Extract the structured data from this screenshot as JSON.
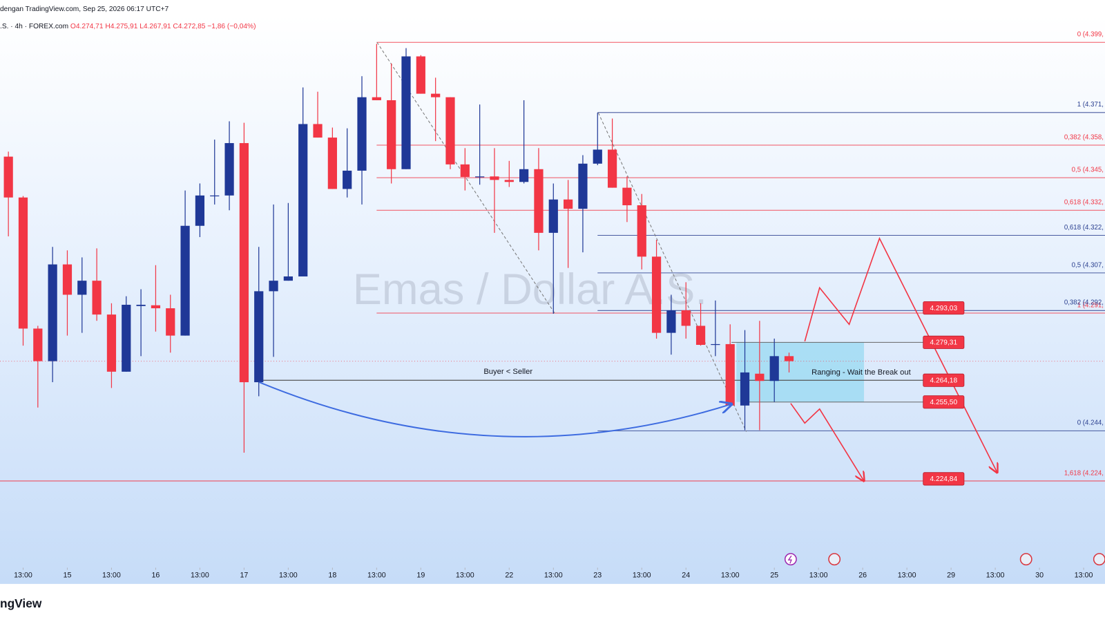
{
  "chart_data": {
    "type": "candlestick",
    "title": "Emas / Dollar A.S.",
    "header_line": "dengan TradingView.com, Sep 25, 2026 06:17 UTC+7",
    "symbol": ".S. · 4h · FOREX.com",
    "ohlc": [
      "O4.274,71",
      "H4.275,91",
      "L4.267,91",
      "C4.272,85",
      "−1,86 (−0,04%)"
    ],
    "brand": "ngView",
    "up_color": "#1f3897",
    "down_color": "#f23645",
    "x": [
      0,
      1,
      2,
      3,
      4,
      5,
      6,
      7,
      8,
      9,
      10,
      11,
      12,
      13,
      14,
      15,
      16,
      17,
      18,
      19,
      20,
      21,
      22,
      23,
      24,
      25,
      26,
      27,
      28,
      29,
      30,
      31,
      32,
      33,
      34,
      35,
      36,
      37,
      38,
      39,
      40,
      41,
      42,
      43,
      44,
      45,
      46,
      47,
      48,
      49,
      50,
      51,
      52,
      53
    ],
    "open": [
      4353.4,
      4337.1,
      4284.8,
      4271.8,
      4310.4,
      4298.3,
      4303.9,
      4290.4,
      4267.6,
      4293.8,
      4294.1,
      4292.9,
      4282.0,
      4325.8,
      4337.7,
      4337.9,
      4358.8,
      4263.4,
      4299.7,
      4303.9,
      4305.6,
      4366.4,
      4361.0,
      4340.5,
      4347.8,
      4377.1,
      4375.9,
      4348.4,
      4393.4,
      4378.5,
      4377.1,
      4350.3,
      4345.3,
      4345.5,
      4344.1,
      4343.3,
      4348.4,
      4323.0,
      4336.3,
      4332.6,
      4350.6,
      4356.2,
      4341.0,
      4334.0,
      4313.5,
      4283.1,
      4292.1,
      4285.9,
      4278.3,
      4278.6,
      4254.1,
      4266.8,
      4263.9,
      4273.8
    ],
    "high": [
      4355.4,
      4337.7,
      4285.9,
      4317.4,
      4316.0,
      4313.2,
      4316.8,
      4294.9,
      4297.7,
      4300.5,
      4310.1,
      4298.3,
      4339.9,
      4342.7,
      4360.2,
      4367.5,
      4366.9,
      4317.4,
      4334.3,
      4334.9,
      4381.0,
      4379.3,
      4365.0,
      4364.7,
      4385.5,
      4398.4,
      4390.6,
      4396.7,
      4393.9,
      4384.9,
      4377.1,
      4356.8,
      4374.2,
      4356.8,
      4351.7,
      4375.9,
      4356.8,
      4342.7,
      4344.1,
      4354.0,
      4370.9,
      4368.6,
      4345.5,
      4338.5,
      4320.2,
      4298.3,
      4303.3,
      4294.9,
      4296.0,
      4286.5,
      4284.2,
      4287.9,
      4280.8,
      4275.2
    ],
    "low": [
      4321.6,
      4278.0,
      4253.3,
      4263.4,
      4282.0,
      4283.1,
      4287.9,
      4261.1,
      4267.6,
      4273.8,
      4283.6,
      4275.2,
      4282.0,
      4321.3,
      4334.3,
      4332.0,
      4235.3,
      4257.8,
      4273.5,
      4303.9,
      4305.6,
      4361.0,
      4340.5,
      4337.1,
      4334.3,
      4375.9,
      4342.7,
      4348.4,
      4378.5,
      4359.6,
      4348.4,
      4339.9,
      4342.2,
      4323.0,
      4341.3,
      4342.7,
      4316.0,
      4290.7,
      4309.0,
      4315.2,
      4350.0,
      4341.0,
      4327.3,
      4308.4,
      4280.8,
      4274.4,
      4280.8,
      4278.0,
      4273.8,
      4253.3,
      4244.3,
      4244.3,
      4255.5,
      4267.3
    ],
    "close": [
      4337.1,
      4284.8,
      4271.8,
      4310.4,
      4298.3,
      4303.9,
      4290.4,
      4267.6,
      4294.3,
      4294.3,
      4292.9,
      4282.0,
      4325.8,
      4337.9,
      4337.9,
      4358.8,
      4263.4,
      4299.7,
      4303.9,
      4305.6,
      4366.4,
      4361.0,
      4340.5,
      4347.8,
      4377.1,
      4375.9,
      4348.4,
      4393.4,
      4378.5,
      4377.1,
      4350.3,
      4345.3,
      4345.5,
      4344.1,
      4343.3,
      4348.4,
      4323.0,
      4336.3,
      4332.6,
      4350.6,
      4356.2,
      4341.0,
      4334.0,
      4313.5,
      4283.1,
      4292.1,
      4285.9,
      4278.3,
      4278.6,
      4254.1,
      4267.3,
      4263.9,
      4273.8,
      4271.8
    ],
    "xlim": [
      -0.57,
      74.45
    ],
    "ylim": [
      4189.4,
      4409.7
    ],
    "xticks": [
      {
        "value": 1,
        "label": "13:00"
      },
      {
        "value": 4,
        "label": "15"
      },
      {
        "value": 7,
        "label": "13:00"
      },
      {
        "value": 10,
        "label": "16"
      },
      {
        "value": 13,
        "label": "13:00"
      },
      {
        "value": 16,
        "label": "17"
      },
      {
        "value": 19,
        "label": "13:00"
      },
      {
        "value": 22,
        "label": "18"
      },
      {
        "value": 25,
        "label": "13:00"
      },
      {
        "value": 28,
        "label": "19"
      },
      {
        "value": 31,
        "label": "13:00"
      },
      {
        "value": 34,
        "label": "22"
      },
      {
        "value": 37,
        "label": "13:00"
      },
      {
        "value": 40,
        "label": "23"
      },
      {
        "value": 43,
        "label": "13:00"
      },
      {
        "value": 46,
        "label": "24"
      },
      {
        "value": 49,
        "label": "13:00"
      },
      {
        "value": 52,
        "label": "25"
      },
      {
        "value": 55,
        "label": "13:00"
      },
      {
        "value": 58,
        "label": "26"
      },
      {
        "value": 61,
        "label": "13:00"
      },
      {
        "value": 64,
        "label": "29"
      },
      {
        "value": 67,
        "label": "13:00"
      },
      {
        "value": 70,
        "label": "30"
      },
      {
        "value": 73,
        "label": "13:00"
      }
    ],
    "fib_levels": [
      {
        "label": "0 (4.399,",
        "value": 4399,
        "color": "#f23645",
        "start": 25
      },
      {
        "label": "0,382 (4.358,",
        "value": 4358,
        "color": "#f23645",
        "start": 25
      },
      {
        "label": "0,5 (4.345,",
        "value": 4345,
        "color": "#f23645",
        "start": 25
      },
      {
        "label": "0,618 (4.332,",
        "value": 4332,
        "color": "#f23645",
        "start": 25
      },
      {
        "label": "1 (4.291,",
        "value": 4291,
        "color": "#f23645",
        "start": 25
      },
      {
        "label": "1,618 (4.224,",
        "value": 4224,
        "color": "#f23645"
      },
      {
        "label": "1 (4.371,",
        "value": 4371,
        "color": "#2a3f8f",
        "start": 40
      },
      {
        "label": "0,618 (4.322,",
        "value": 4322,
        "color": "#2a3f8f",
        "start": 40
      },
      {
        "label": "0,5 (4.307,",
        "value": 4307,
        "color": "#2a3f8f",
        "start": 40
      },
      {
        "label": "0,382 (4.292,",
        "value": 4292,
        "color": "#2a3f8f",
        "start": 40
      },
      {
        "label": "0 (4.244,",
        "value": 4244,
        "color": "#2a3f8f",
        "start": 40
      }
    ],
    "price_tags": [
      {
        "value": 4293.03,
        "label": "4.293,03"
      },
      {
        "value": 4279.31,
        "label": "4.279,31"
      },
      {
        "value": 4264.18,
        "label": "4.264,18"
      },
      {
        "value": 4255.5,
        "label": "4.255,50"
      },
      {
        "value": 4224.84,
        "label": "4.224,84"
      }
    ],
    "ranging_box_label": "Ranging - Wait the Break out",
    "buyer_seller_label": "Buyer < Seller"
  }
}
